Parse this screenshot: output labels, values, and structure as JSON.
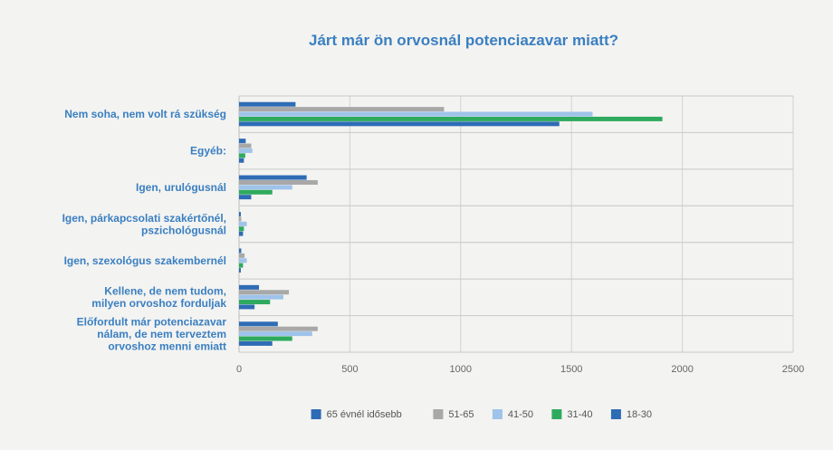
{
  "chart_data": {
    "type": "bar",
    "orientation": "horizontal",
    "title": "Járt már ön orvosnál potenciazavar miatt?",
    "categories": [
      [
        "Nem soha, nem volt rá szükség"
      ],
      [
        "Egyéb:"
      ],
      [
        "Igen, urulógusnál"
      ],
      [
        "Igen, párkapcsolati szakértőnél,",
        "pszichológusnál"
      ],
      [
        "Igen, szexológus szakembernél"
      ],
      [
        "Kellene, de nem tudom,",
        "milyen orvoshoz forduljak"
      ],
      [
        "Előfordult már potenciazavar",
        "nálam, de nem terveztem",
        "orvoshoz menni emiatt"
      ]
    ],
    "series": [
      {
        "name": "65 évnél idősebb",
        "color": "#2e6cb5",
        "values": [
          255,
          30,
          305,
          8,
          10,
          90,
          175
        ]
      },
      {
        "name": "51-65",
        "color": "#a8a8a8",
        "values": [
          925,
          55,
          355,
          10,
          25,
          225,
          355
        ]
      },
      {
        "name": "41-50",
        "color": "#9fc3ea",
        "values": [
          1595,
          60,
          240,
          35,
          35,
          200,
          330
        ]
      },
      {
        "name": "31-40",
        "color": "#2eaa5e",
        "values": [
          1910,
          28,
          150,
          22,
          18,
          140,
          240
        ]
      },
      {
        "name": "18-30",
        "color": "#2e6cb5",
        "values": [
          1445,
          22,
          55,
          18,
          8,
          70,
          150
        ]
      }
    ],
    "xlim": [
      0,
      2500
    ],
    "xticks": [
      0,
      500,
      1000,
      1500,
      2000,
      2500
    ],
    "grid": true,
    "legend_position": "bottom"
  }
}
